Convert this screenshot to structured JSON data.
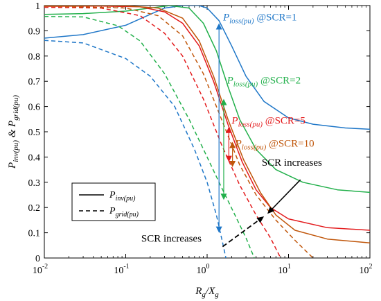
{
  "chart_data": {
    "type": "line",
    "x_scale": "log",
    "xlim": [
      0.01,
      100
    ],
    "ylim": [
      0,
      1
    ],
    "grid": false,
    "legend": "bottom-left",
    "xlabel_main": "R",
    "xlabel_sub1": "g",
    "xlabel_mid": "/X",
    "xlabel_sub2": "g",
    "ylabel_parts": [
      "P",
      "inv(pu)",
      " & P",
      "grid(pu)"
    ],
    "x_ticks": [
      {
        "value": 0.01,
        "base": "10",
        "exp": "-2"
      },
      {
        "value": 0.1,
        "base": "10",
        "exp": "-1"
      },
      {
        "value": 1,
        "base": "10",
        "exp": "0"
      },
      {
        "value": 10,
        "base": "10",
        "exp": "1"
      },
      {
        "value": 100,
        "base": "10",
        "exp": "2"
      }
    ],
    "y_ticks": [
      "0",
      "0.1",
      "0.2",
      "0.3",
      "0.4",
      "0.5",
      "0.6",
      "0.7",
      "0.8",
      "0.9",
      "1"
    ],
    "legend_entries": [
      {
        "main": "P",
        "sub": "inv(pu)",
        "dash": false
      },
      {
        "main": "P",
        "sub": "grid(pu)",
        "dash": true
      }
    ],
    "series": [
      {
        "scr": 1,
        "kind": "inv",
        "color": "#1f77c8",
        "dash": false,
        "points": [
          [
            0.01,
            0.871
          ],
          [
            0.03,
            0.885
          ],
          [
            0.1,
            0.922
          ],
          [
            0.2,
            0.965
          ],
          [
            0.3,
            0.99
          ],
          [
            0.5,
            1.0
          ],
          [
            0.8,
            1.0
          ],
          [
            1.0,
            0.99
          ],
          [
            1.4,
            0.94
          ],
          [
            2,
            0.84
          ],
          [
            3,
            0.72
          ],
          [
            5,
            0.62
          ],
          [
            10,
            0.555
          ],
          [
            20,
            0.53
          ],
          [
            50,
            0.515
          ],
          [
            100,
            0.51
          ]
        ]
      },
      {
        "scr": 1,
        "kind": "grid",
        "color": "#1f77c8",
        "dash": true,
        "points": [
          [
            0.01,
            0.862
          ],
          [
            0.03,
            0.852
          ],
          [
            0.1,
            0.79
          ],
          [
            0.2,
            0.72
          ],
          [
            0.4,
            0.6
          ],
          [
            0.7,
            0.43
          ],
          [
            1.0,
            0.3
          ],
          [
            1.3,
            0.17
          ],
          [
            1.55,
            0.06
          ],
          [
            1.7,
            0.0
          ]
        ]
      },
      {
        "scr": 2,
        "kind": "inv",
        "color": "#22b04b",
        "dash": false,
        "points": [
          [
            0.01,
            0.965
          ],
          [
            0.03,
            0.968
          ],
          [
            0.1,
            0.978
          ],
          [
            0.2,
            0.99
          ],
          [
            0.35,
            1.0
          ],
          [
            0.6,
            0.99
          ],
          [
            0.9,
            0.93
          ],
          [
            1.3,
            0.82
          ],
          [
            1.8,
            0.68
          ],
          [
            2.5,
            0.55
          ],
          [
            4,
            0.43
          ],
          [
            7,
            0.35
          ],
          [
            15,
            0.3
          ],
          [
            40,
            0.27
          ],
          [
            100,
            0.26
          ]
        ]
      },
      {
        "scr": 2,
        "kind": "grid",
        "color": "#22b04b",
        "dash": true,
        "points": [
          [
            0.01,
            0.957
          ],
          [
            0.03,
            0.955
          ],
          [
            0.08,
            0.92
          ],
          [
            0.15,
            0.86
          ],
          [
            0.3,
            0.73
          ],
          [
            0.6,
            0.55
          ],
          [
            1.0,
            0.4
          ],
          [
            1.5,
            0.28
          ],
          [
            2.2,
            0.17
          ],
          [
            3,
            0.08
          ],
          [
            3.8,
            0.0
          ]
        ]
      },
      {
        "scr": 5,
        "kind": "inv",
        "color": "#e31a1c",
        "dash": false,
        "points": [
          [
            0.01,
            0.997
          ],
          [
            0.05,
            0.998
          ],
          [
            0.15,
            0.995
          ],
          [
            0.3,
            0.975
          ],
          [
            0.5,
            0.93
          ],
          [
            0.8,
            0.84
          ],
          [
            1.2,
            0.7
          ],
          [
            1.8,
            0.53
          ],
          [
            2.7,
            0.38
          ],
          [
            4,
            0.27
          ],
          [
            6,
            0.2
          ],
          [
            10,
            0.155
          ],
          [
            30,
            0.12
          ],
          [
            100,
            0.11
          ]
        ]
      },
      {
        "scr": 5,
        "kind": "grid",
        "color": "#e31a1c",
        "dash": true,
        "points": [
          [
            0.01,
            0.993
          ],
          [
            0.05,
            0.99
          ],
          [
            0.15,
            0.96
          ],
          [
            0.3,
            0.89
          ],
          [
            0.5,
            0.8
          ],
          [
            0.9,
            0.63
          ],
          [
            1.5,
            0.45
          ],
          [
            2.5,
            0.29
          ],
          [
            4,
            0.17
          ],
          [
            6,
            0.08
          ],
          [
            8,
            0.0
          ]
        ]
      },
      {
        "scr": 10,
        "kind": "inv",
        "color": "#c0560a",
        "dash": false,
        "points": [
          [
            0.01,
            0.999
          ],
          [
            0.1,
            0.999
          ],
          [
            0.25,
            0.99
          ],
          [
            0.5,
            0.95
          ],
          [
            0.8,
            0.86
          ],
          [
            1.2,
            0.72
          ],
          [
            1.8,
            0.55
          ],
          [
            2.8,
            0.39
          ],
          [
            4.5,
            0.26
          ],
          [
            7,
            0.17
          ],
          [
            12,
            0.11
          ],
          [
            30,
            0.075
          ],
          [
            100,
            0.06
          ]
        ]
      },
      {
        "scr": 10,
        "kind": "grid",
        "color": "#c0560a",
        "dash": true,
        "points": [
          [
            0.01,
            0.998
          ],
          [
            0.1,
            0.99
          ],
          [
            0.25,
            0.96
          ],
          [
            0.5,
            0.88
          ],
          [
            0.9,
            0.73
          ],
          [
            1.5,
            0.55
          ],
          [
            2.5,
            0.37
          ],
          [
            4,
            0.25
          ],
          [
            7,
            0.15
          ],
          [
            12,
            0.07
          ],
          [
            20,
            0.0
          ]
        ]
      }
    ],
    "loss_arrows": [
      {
        "scr": 1,
        "x": 1.4,
        "y_top": 0.93,
        "y_bottom": 0.1,
        "color": "#1f77c8"
      },
      {
        "scr": 2,
        "x": 1.6,
        "y_top": 0.63,
        "y_bottom": 0.23,
        "color": "#22b04b"
      },
      {
        "scr": 5,
        "x": 1.85,
        "y_top": 0.52,
        "y_bottom": 0.38,
        "color": "#e31a1c"
      },
      {
        "scr": 10,
        "x": 2.05,
        "y_top": 0.46,
        "y_bottom": 0.36,
        "color": "#c0560a"
      }
    ],
    "loss_labels": [
      {
        "main": "P",
        "sub": "loss(pu)",
        "suffix": " @SCR=1",
        "color": "#1f77c8",
        "x": 1.45,
        "y": 0.93
      },
      {
        "main": "P",
        "sub": "loss(pu)",
        "suffix": " @SCR=2",
        "color": "#22b04b",
        "x": 1.62,
        "y": 0.68
      },
      {
        "main": "P",
        "sub": "loss(pu)",
        "suffix": " @SCR=5",
        "color": "#e31a1c",
        "x": 1.85,
        "y": 0.52
      },
      {
        "main": "P",
        "sub": "loss(pu)",
        "suffix": " @SCR=10",
        "color": "#c0560a",
        "x": 2.05,
        "y": 0.43
      }
    ],
    "annotations": [
      {
        "text": "SCR increases",
        "x1": 5.5,
        "y1": 0.175,
        "x2": 14,
        "y2": 0.31,
        "tx": 11,
        "ty": 0.365,
        "style": "solid"
      },
      {
        "text": "SCR increases",
        "x1": 1.55,
        "y1": 0.045,
        "x2": 5.0,
        "y2": 0.165,
        "tx": 0.155,
        "ty": 0.065,
        "style": "dashed"
      }
    ]
  }
}
